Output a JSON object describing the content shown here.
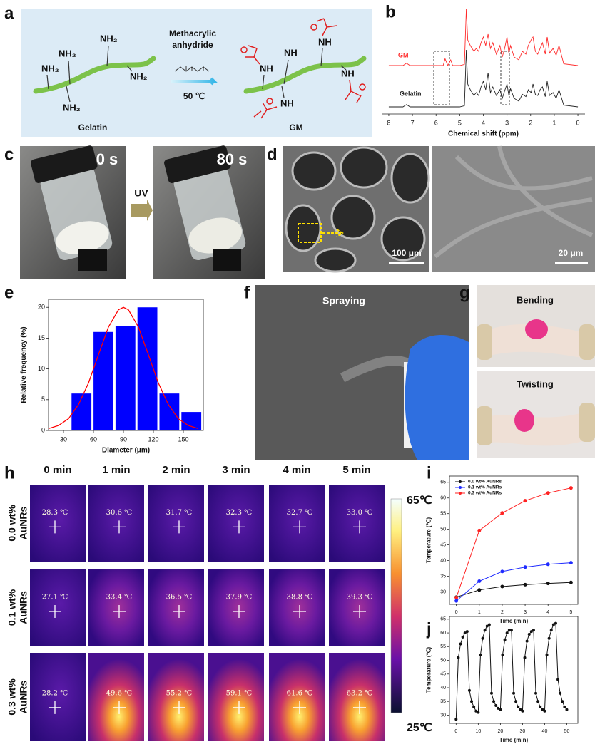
{
  "figure": {
    "a": {
      "label": "a",
      "reagent": [
        "Methacrylic",
        "anhydride"
      ],
      "condition": "50 ℃",
      "reactant": "Gelatin",
      "product": "GM",
      "amine_labels": [
        "NH₂",
        "NH₂",
        "NH₂",
        "NH₂",
        "NH₂"
      ],
      "amide_labels": [
        "NH",
        "NH",
        "NH",
        "NH",
        "NH"
      ]
    },
    "c": {
      "label": "c",
      "before": "0 s",
      "after": "80 s",
      "stimulus": "UV"
    },
    "d": {
      "label": "d",
      "scale_bars": [
        "100 μm",
        "20 μm"
      ]
    },
    "f": {
      "label": "f",
      "caption": "Spraying"
    },
    "g": {
      "label": "g",
      "captions": [
        "Bending",
        "Twisting"
      ]
    },
    "h": {
      "label": "h",
      "columns": [
        "0 min",
        "1 min",
        "2 min",
        "3 min",
        "4 min",
        "5 min"
      ],
      "rows": [
        {
          "label_lines": [
            "0.0 wt%",
            "AuNRs"
          ],
          "readings": [
            "28.3 ℃",
            "30.6 ℃",
            "31.7 ℃",
            "32.3 ℃",
            "32.7 ℃",
            "33.0 ℃"
          ]
        },
        {
          "label_lines": [
            "0.1 wt%",
            "AuNRs"
          ],
          "readings": [
            "27.1 ℃",
            "33.4 ℃",
            "36.5 ℃",
            "37.9 ℃",
            "38.8 ℃",
            "39.3 ℃"
          ]
        },
        {
          "label_lines": [
            "0.3 wt%",
            "AuNRs"
          ],
          "readings": [
            "28.2 ℃",
            "49.6 ℃",
            "55.2 ℃",
            "59.1 ℃",
            "61.6 ℃",
            "63.2 ℃"
          ]
        }
      ],
      "scale_max": "65℃",
      "scale_min": "25℃"
    }
  },
  "chart_data": [
    {
      "type": "line",
      "label": "b",
      "x_label": "Chemical shift (ppm)",
      "xlim": [
        8.3,
        -0.3
      ],
      "xticks": [
        8,
        7,
        6,
        5,
        4,
        3,
        2,
        1,
        0
      ],
      "x": [
        8,
        7.4,
        7.25,
        7.1,
        6.0,
        5.7,
        5.62,
        5.5,
        5.38,
        5.3,
        5.0,
        4.8,
        4.72,
        4.66,
        4.55,
        4.4,
        4.3,
        4.2,
        4.1,
        4.0,
        3.9,
        3.8,
        3.7,
        3.6,
        3.45,
        3.3,
        3.2,
        3.1,
        3.0,
        2.92,
        2.85,
        2.7,
        2.5,
        2.35,
        2.2,
        2.1,
        1.98,
        1.9,
        1.8,
        1.7,
        1.6,
        1.5,
        1.38,
        1.3,
        1.2,
        1.05,
        0.92,
        0.8,
        0.6,
        0
      ],
      "series": [
        {
          "name": "GM",
          "color": "#ff2a2a",
          "values": [
            0,
            0,
            4,
            0,
            0,
            0,
            12,
            0,
            10,
            0,
            0,
            2,
            100,
            45,
            35,
            25,
            30,
            25,
            40,
            50,
            35,
            55,
            30,
            40,
            20,
            35,
            15,
            30,
            50,
            22,
            35,
            15,
            10,
            25,
            20,
            35,
            45,
            50,
            25,
            20,
            30,
            40,
            20,
            50,
            22,
            30,
            18,
            35,
            3,
            0
          ]
        },
        {
          "name": "Gelatin",
          "color": "#222222",
          "values": [
            0,
            0,
            4,
            0,
            0,
            0,
            0,
            0,
            0,
            0,
            0,
            2,
            100,
            40,
            30,
            20,
            25,
            20,
            35,
            45,
            30,
            60,
            25,
            35,
            20,
            30,
            15,
            28,
            40,
            20,
            32,
            15,
            10,
            22,
            18,
            30,
            25,
            40,
            22,
            20,
            30,
            35,
            18,
            45,
            20,
            25,
            15,
            30,
            3,
            0
          ]
        }
      ]
    },
    {
      "type": "histogram",
      "label": "e",
      "x_label": "Diameter (μm)",
      "y_label": "Relative frequency (%)",
      "bins": [
        37,
        59,
        81,
        103,
        125,
        147,
        169
      ],
      "counts": [
        6,
        16,
        17,
        20,
        6,
        3
      ],
      "color": "#0000ff",
      "xlim": [
        15,
        170
      ],
      "xticks": [
        30,
        60,
        90,
        120,
        150
      ],
      "ylim": [
        0,
        21.3
      ],
      "yticks": [
        0,
        5,
        10,
        15,
        20
      ],
      "fit": {
        "color": "#ff0000",
        "x": [
          15,
          25,
          35,
          45,
          55,
          65,
          75,
          85,
          90,
          95,
          105,
          115,
          125,
          135,
          145,
          155,
          165
        ],
        "values": [
          0.3,
          0.8,
          1.9,
          4.2,
          7.7,
          12.3,
          16.8,
          19.6,
          20,
          19.6,
          16.8,
          12.3,
          7.7,
          4.2,
          1.9,
          0.8,
          0.3
        ]
      }
    },
    {
      "type": "line",
      "label": "i",
      "x_label": "Time (min)",
      "y_label": "Temperature (℃)",
      "legend": "upper left",
      "x": [
        0,
        1,
        2,
        3,
        4,
        5
      ],
      "xlim": [
        -0.3,
        5.3
      ],
      "xticks": [
        0,
        1,
        2,
        3,
        4,
        5
      ],
      "ylim": [
        26,
        67
      ],
      "yticks": [
        30,
        35,
        40,
        45,
        50,
        55,
        60,
        65
      ],
      "series": [
        {
          "name": "0.0 wt% AuNRs",
          "color": "#111111",
          "values": [
            28.3,
            30.6,
            31.7,
            32.3,
            32.7,
            33.0
          ]
        },
        {
          "name": "0.1 wt% AuNRs",
          "color": "#1f2bff",
          "values": [
            27.1,
            33.4,
            36.5,
            37.9,
            38.8,
            39.3
          ]
        },
        {
          "name": "0.3 wt% AuNRs",
          "color": "#ff2222",
          "values": [
            28.2,
            49.6,
            55.2,
            59.1,
            61.6,
            63.2
          ]
        }
      ]
    },
    {
      "type": "line",
      "label": "j",
      "x_label": "Time (min)",
      "y_label": "Temperature (℃)",
      "x": [
        0,
        1,
        2,
        3,
        4,
        5,
        6,
        7,
        8,
        9,
        10,
        11,
        12,
        13,
        14,
        15,
        16,
        17,
        18,
        19,
        20,
        21,
        22,
        23,
        24,
        25,
        26,
        27,
        28,
        29,
        30,
        31,
        32,
        33,
        34,
        35,
        36,
        37,
        38,
        39,
        40,
        41,
        42,
        43,
        44,
        45,
        46,
        47,
        48,
        49,
        50
      ],
      "xlim": [
        -3,
        55
      ],
      "xticks": [
        0,
        10,
        20,
        30,
        40,
        50
      ],
      "ylim": [
        27,
        66
      ],
      "yticks": [
        30,
        35,
        40,
        45,
        50,
        55,
        60,
        65
      ],
      "series": [
        {
          "color": "#111111",
          "values": [
            28.5,
            51,
            56,
            58.5,
            60,
            60.5,
            39,
            35,
            33,
            31.5,
            31,
            52,
            58,
            61,
            62.5,
            63,
            38,
            35,
            33.5,
            32.5,
            32,
            52,
            57.5,
            60,
            61,
            61,
            38,
            35,
            33,
            32,
            31.5,
            51,
            57,
            59.5,
            60.5,
            61,
            38,
            35,
            33,
            32,
            31.5,
            52,
            58,
            61,
            63,
            63.5,
            43,
            38,
            35,
            33,
            32
          ]
        }
      ]
    }
  ]
}
